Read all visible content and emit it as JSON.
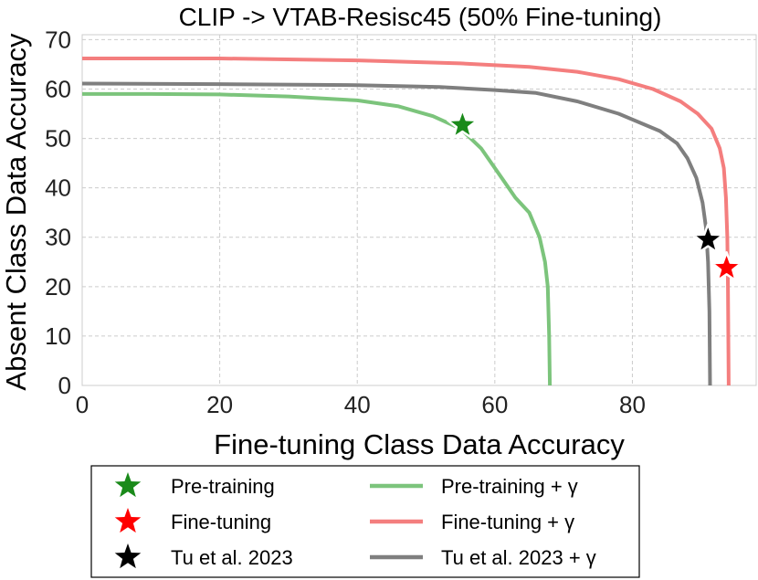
{
  "chart_data": {
    "type": "line",
    "title": "CLIP -> VTAB-Resisc45 (50% Fine-tuning)",
    "xlabel": "Fine-tuning Class Data Accuracy",
    "ylabel": "Absent Class Data Accuracy",
    "xlim": [
      0,
      98
    ],
    "ylim": [
      0,
      71
    ],
    "xticks": [
      0,
      20,
      40,
      60,
      80
    ],
    "yticks": [
      0,
      10,
      20,
      30,
      40,
      50,
      60,
      70
    ],
    "grid": true,
    "legend_position": "bottom",
    "series": [
      {
        "name": "Pre-training + γ",
        "color": "#7cc47c",
        "x": [
          0,
          10,
          20,
          30,
          40,
          46,
          51,
          55,
          58,
          61,
          63,
          65,
          66.5,
          67.3,
          67.7,
          67.9,
          68
        ],
        "y": [
          59,
          59,
          58.9,
          58.5,
          57.7,
          56.5,
          54.5,
          52,
          48,
          42,
          38,
          35,
          30,
          25,
          20,
          10,
          0
        ]
      },
      {
        "name": "Fine-tuning + γ",
        "color": "#f47e7e",
        "x": [
          0,
          20,
          40,
          55,
          65,
          72,
          78,
          83,
          87,
          89.5,
          91.5,
          92.7,
          93.3,
          93.6,
          93.8,
          93.9,
          94
        ],
        "y": [
          66.2,
          66.2,
          65.8,
          65.2,
          64.5,
          63.5,
          62,
          60,
          57.5,
          55,
          52,
          48,
          44,
          38,
          30,
          20,
          0
        ]
      },
      {
        "name": "Tu et al. 2023 + γ",
        "color": "#7f7f7f",
        "x": [
          0,
          20,
          40,
          52,
          60,
          66,
          72,
          78,
          84,
          86.5,
          88,
          89.3,
          90.2,
          90.7,
          91,
          91.2,
          91.3
        ],
        "y": [
          61.1,
          61,
          60.8,
          60.4,
          59.8,
          59.2,
          57.5,
          55,
          51.5,
          49,
          46,
          42,
          37,
          32,
          25,
          15,
          0
        ]
      }
    ],
    "markers": [
      {
        "name": "Pre-training",
        "x": 55.3,
        "y": 52.7,
        "color": "#1a8a1a"
      },
      {
        "name": "Fine-tuning",
        "x": 93.7,
        "y": 23.8,
        "color": "#ff0000"
      },
      {
        "name": "Tu et al. 2023",
        "x": 91,
        "y": 29.5,
        "color": "#000000"
      }
    ],
    "legend": [
      {
        "label": "Pre-training",
        "kind": "star",
        "color": "#1a8a1a"
      },
      {
        "label": "Fine-tuning",
        "kind": "star",
        "color": "#ff0000"
      },
      {
        "label": "Tu et al. 2023",
        "kind": "star",
        "color": "#000000"
      },
      {
        "label": "Pre-training + γ",
        "kind": "line",
        "color": "#7cc47c"
      },
      {
        "label": "Fine-tuning + γ",
        "kind": "line",
        "color": "#f47e7e"
      },
      {
        "label": "Tu et al. 2023 + γ",
        "kind": "line",
        "color": "#7f7f7f"
      }
    ]
  }
}
